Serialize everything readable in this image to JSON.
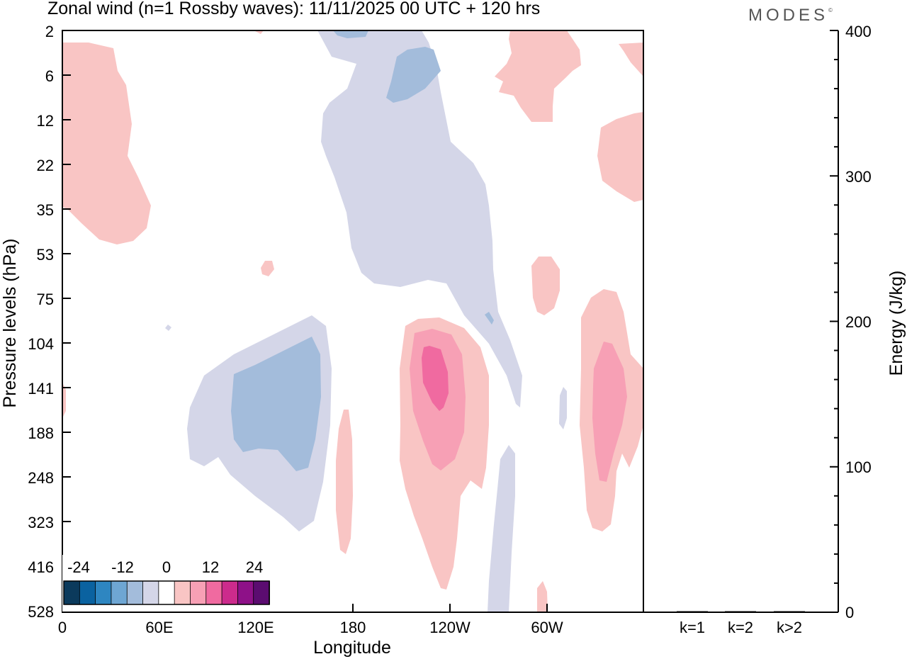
{
  "header": {
    "title": "Zonal wind (n=1 Rossby waves):  11/11/2025  00 UTC  + 120 hrs",
    "logo_text": "MODES",
    "logo_mark": "©"
  },
  "chart_data": [
    {
      "type": "contour",
      "title": "Zonal wind (n=1 Rossby waves):  11/11/2025  00 UTC  + 120 hrs",
      "xlabel": "Longitude",
      "ylabel": "Pressure levels (hPa)",
      "x_ticks": [
        "0",
        "60E",
        "120E",
        "180",
        "120W",
        "60W"
      ],
      "y_ticks": [
        "2",
        "6",
        "12",
        "22",
        "35",
        "53",
        "75",
        "104",
        "141",
        "188",
        "248",
        "323",
        "416",
        "528"
      ],
      "colorbar": {
        "labels": [
          "-24",
          "-12",
          "0",
          "12",
          "24"
        ],
        "levels": [
          -30,
          -24,
          -18,
          -12,
          -6,
          -3,
          3,
          6,
          12,
          18,
          24,
          30
        ],
        "colors": [
          "#0b3a5c",
          "#0a62a0",
          "#2e86c1",
          "#6ea6d3",
          "#a3bcdb",
          "#d4d6e8",
          "#ffffff",
          "#f9c5c4",
          "#f7a0b5",
          "#f06aa0",
          "#cc2b8c",
          "#8e1188",
          "#5b0c70"
        ]
      },
      "features": [
        {
          "sign": "positive",
          "approx_max": 8,
          "location": "0-40E, 2-45 hPa"
        },
        {
          "sign": "positive",
          "approx_max": 4,
          "location": "around 120E, 60 hPa"
        },
        {
          "sign": "negative",
          "approx_min": -14,
          "location": "60E-160E, 90-330 hPa"
        },
        {
          "sign": "negative",
          "approx_min": -8,
          "location": "170E-130W, 2-90 hPa"
        },
        {
          "sign": "positive",
          "approx_max": 4,
          "location": "around 175E, 170-400 hPa"
        },
        {
          "sign": "positive",
          "approx_max": 16,
          "location": "145W-95W, 95-500 hPa"
        },
        {
          "sign": "negative",
          "approx_min": -6,
          "location": "110W-80W, 90-180 hPa and 250-528 hPa"
        },
        {
          "sign": "positive",
          "approx_max": 6,
          "location": "70W-40W, 2-20 hPa"
        },
        {
          "sign": "positive",
          "approx_max": 4,
          "location": "around 60W, 55-90 hPa"
        },
        {
          "sign": "positive",
          "approx_max": 10,
          "location": "40W-0, 80-330 hPa"
        },
        {
          "sign": "positive",
          "approx_max": 6,
          "location": "40W-0, 5-30 hPa"
        }
      ]
    },
    {
      "type": "bar",
      "categories": [
        "k=1",
        "k=2",
        "k>2"
      ],
      "values": [
        0.5,
        0.2,
        0.5
      ],
      "ylabel": "Energy (J/kg)",
      "ylim": [
        0,
        400
      ],
      "y_ticks": [
        "0",
        "100",
        "200",
        "300",
        "400"
      ]
    }
  ]
}
